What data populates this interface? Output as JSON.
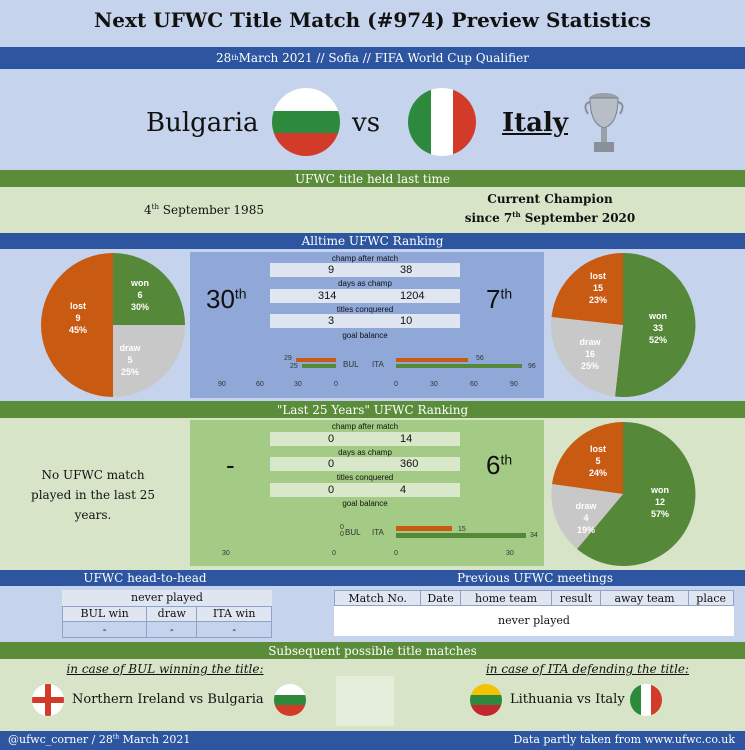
{
  "title": "Next UFWC Title Match (#974) Preview Statistics",
  "match_info": {
    "day": "28",
    "day_sup": "th",
    "rest": " March 2021 // Sofia // FIFA World Cup Qualifier"
  },
  "teams": {
    "home": "Bulgaria",
    "vs": "vs",
    "away": "Italy"
  },
  "held": {
    "header": "UFWC title held last time",
    "home_day": "4",
    "home_sup": "th",
    "home_rest": " September 1985",
    "away_line1": "Current Champion",
    "away_line2_pre": "since 7",
    "away_line2_sup": "th",
    "away_line2_rest": " September 2020"
  },
  "alltime": {
    "header": "Alltime UFWC Ranking",
    "home_rank": "30",
    "home_rank_sup": "th",
    "away_rank": "7",
    "away_rank_sup": "th",
    "stats": [
      {
        "label": "champ after match",
        "home": "9",
        "away": "38"
      },
      {
        "label": "days as champ",
        "home": "314",
        "away": "1204"
      },
      {
        "label": "titles conquered",
        "home": "3",
        "away": "10"
      },
      {
        "label": "goal balance",
        "home": "",
        "away": ""
      }
    ],
    "goal_home_bars": [
      "29",
      "25"
    ],
    "goal_away_bars": [
      "56",
      "96"
    ],
    "bar_labels": {
      "bul": "BUL",
      "ita": "ITA"
    },
    "ticks_left": [
      "90",
      "60",
      "30",
      "0"
    ],
    "ticks_right": [
      "0",
      "30",
      "60",
      "90"
    ],
    "home_pie": {
      "won": "won",
      "won_n": "6",
      "won_p": "30%",
      "draw": "draw",
      "draw_n": "5",
      "draw_p": "25%",
      "lost": "lost",
      "lost_n": "9",
      "lost_p": "45%"
    },
    "away_pie": {
      "won": "won",
      "won_n": "33",
      "won_p": "52%",
      "draw": "draw",
      "draw_n": "16",
      "draw_p": "25%",
      "lost": "lost",
      "lost_n": "15",
      "lost_p": "23%"
    }
  },
  "last25": {
    "header": "\"Last 25 Years\" UFWC Ranking",
    "home_rank": "-",
    "away_rank": "6",
    "away_rank_sup": "th",
    "no_match_line1": "No UFWC match",
    "no_match_line2": "played in the last 25 years.",
    "stats": [
      {
        "label": "champ after match",
        "home": "0",
        "away": "14"
      },
      {
        "label": "days as champ",
        "home": "0",
        "away": "360"
      },
      {
        "label": "titles conquered",
        "home": "0",
        "away": "4"
      },
      {
        "label": "goal balance",
        "home": "",
        "away": ""
      }
    ],
    "goal_home_bars": [
      "0",
      "0"
    ],
    "goal_away_bars": [
      "15",
      "34"
    ],
    "ticks_left": [
      "30",
      "0"
    ],
    "ticks_right": [
      "0",
      "30"
    ],
    "away_pie": {
      "won": "won",
      "won_n": "12",
      "won_p": "57%",
      "draw": "draw",
      "draw_n": "4",
      "draw_p": "19%",
      "lost": "lost",
      "lost_n": "5",
      "lost_p": "24%"
    }
  },
  "h2h": {
    "header": "UFWC head-to-head",
    "never": "never played",
    "cols": [
      "BUL win",
      "draw",
      "ITA win"
    ],
    "vals": [
      "-",
      "-",
      "-"
    ]
  },
  "previous": {
    "header": "Previous UFWC meetings",
    "cols": [
      "Match No.",
      "Date",
      "home team",
      "result",
      "away team",
      "place"
    ],
    "never": "never played"
  },
  "subsequent": {
    "header": "Subsequent possible title matches",
    "left_caption": "in case of BUL winning the title:",
    "left_match": "Northern Ireland vs Bulgaria",
    "right_caption": "in case of ITA defending the title:",
    "right_match": "Lithuania vs Italy"
  },
  "footer": {
    "left_pre": "@ufwc_corner / 28",
    "left_sup": "th",
    "left_rest": " March 2021",
    "right": "Data partly taken from www.ufwc.co.uk"
  },
  "colors": {
    "won": "#56883a",
    "draw": "#c8c8c8",
    "lost": "#c85a12",
    "band_blue": "#2e55a0",
    "band_green": "#5a8c3a"
  }
}
